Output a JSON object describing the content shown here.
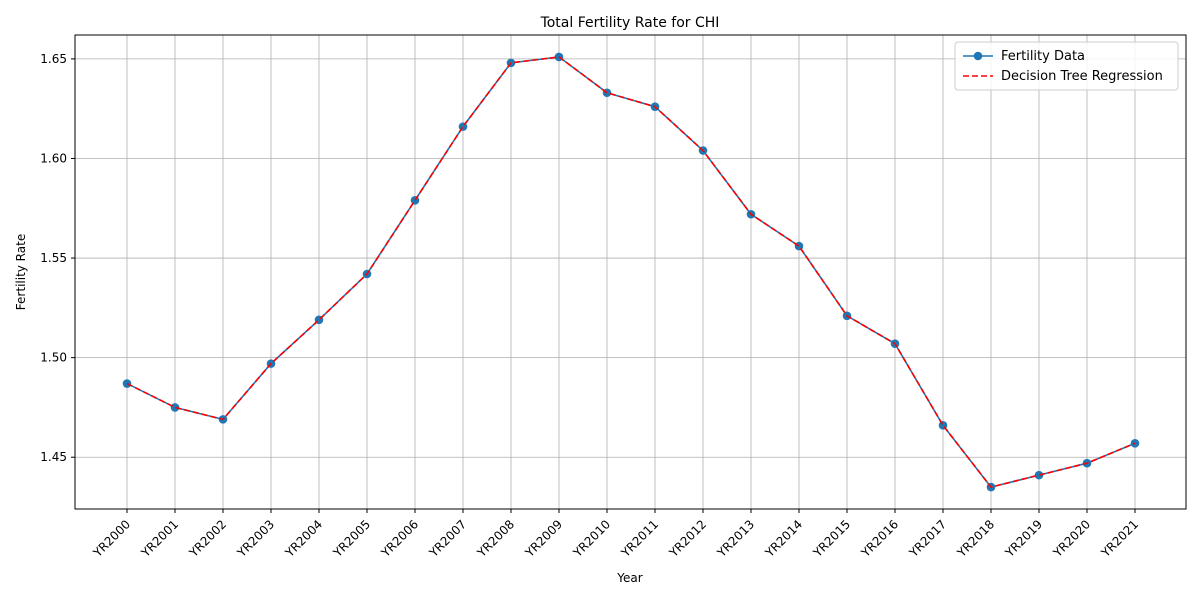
{
  "chart_data": {
    "type": "line",
    "title": "Total Fertility Rate for CHI",
    "xlabel": "Year",
    "ylabel": "Fertility Rate",
    "categories": [
      "YR2000",
      "YR2001",
      "YR2002",
      "YR2003",
      "YR2004",
      "YR2005",
      "YR2006",
      "YR2007",
      "YR2008",
      "YR2009",
      "YR2010",
      "YR2011",
      "YR2012",
      "YR2013",
      "YR2014",
      "YR2015",
      "YR2016",
      "YR2017",
      "YR2018",
      "YR2019",
      "YR2020",
      "YR2021"
    ],
    "ylim": [
      1.424,
      1.662
    ],
    "yticks": [
      1.45,
      1.5,
      1.55,
      1.6,
      1.65
    ],
    "ytick_labels": [
      "1.45",
      "1.50",
      "1.55",
      "1.60",
      "1.65"
    ],
    "grid": true,
    "legend_position": "top-right",
    "series": [
      {
        "name": "Fertility Data",
        "style": "solid-line-with-circle-markers",
        "color": "#1f77b4",
        "values": [
          1.487,
          1.475,
          1.469,
          1.497,
          1.519,
          1.542,
          1.579,
          1.616,
          1.648,
          1.651,
          1.633,
          1.626,
          1.604,
          1.572,
          1.556,
          1.521,
          1.507,
          1.466,
          1.435,
          1.441,
          1.447,
          1.457
        ]
      },
      {
        "name": "Decision Tree Regression",
        "style": "dashed-line",
        "color": "#ff0000",
        "values": [
          1.487,
          1.475,
          1.469,
          1.497,
          1.519,
          1.542,
          1.579,
          1.616,
          1.648,
          1.651,
          1.633,
          1.626,
          1.604,
          1.572,
          1.556,
          1.521,
          1.507,
          1.466,
          1.435,
          1.441,
          1.447,
          1.457
        ]
      }
    ]
  }
}
